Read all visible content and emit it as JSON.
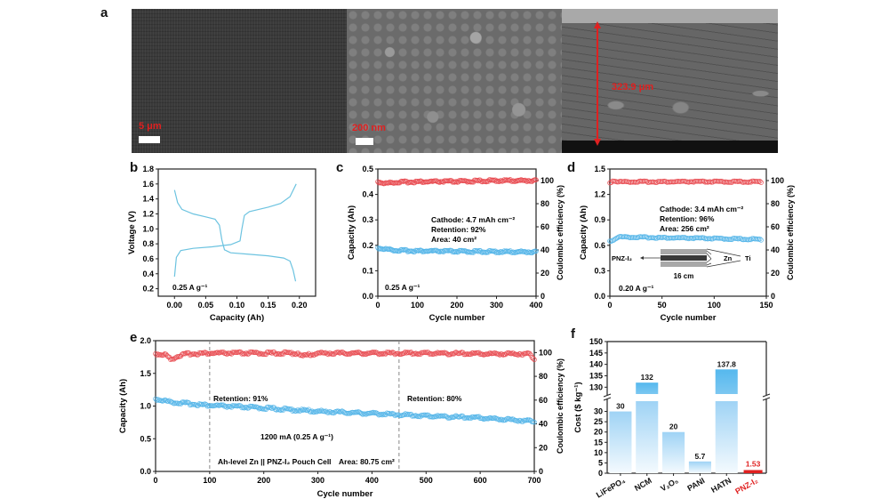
{
  "panels": {
    "a": {
      "label": "a",
      "images": [
        {
          "scale_label": "5 μm"
        },
        {
          "scale_label": "200 nm"
        },
        {
          "scale_label": "323.9 μm"
        }
      ]
    },
    "b": {
      "label": "b"
    },
    "c": {
      "label": "c"
    },
    "d": {
      "label": "d"
    },
    "e": {
      "label": "e"
    },
    "f": {
      "label": "f"
    }
  },
  "colors": {
    "red": "#e8474c",
    "blue": "#4fb3e8",
    "pnz": "#e02020"
  },
  "chart_data": [
    {
      "id": "b",
      "type": "line",
      "xlabel": "Capacity (Ah)",
      "ylabel": "Voltage (V)",
      "xlim": [
        -0.026,
        0.226
      ],
      "ylim": [
        0.1,
        1.8
      ],
      "xticks": [
        "0.00",
        "0.05",
        "0.10",
        "0.15",
        "0.20"
      ],
      "xtick_values": [
        0,
        0.05,
        0.1,
        0.15,
        0.2
      ],
      "yticks": [
        "0.2",
        "0.4",
        "0.6",
        "0.8",
        "1.0",
        "1.2",
        "1.4",
        "1.6",
        "1.8"
      ],
      "ytick_values": [
        0.2,
        0.4,
        0.6,
        0.8,
        1.0,
        1.2,
        1.4,
        1.6,
        1.8
      ],
      "annotation": "0.25 A g⁻¹",
      "series": [
        {
          "name": "discharge",
          "x": [
            0.0,
            0.005,
            0.012,
            0.03,
            0.05,
            0.065,
            0.072,
            0.076,
            0.08,
            0.09,
            0.12,
            0.15,
            0.175,
            0.185,
            0.19,
            0.194
          ],
          "y": [
            1.52,
            1.35,
            1.26,
            1.2,
            1.16,
            1.13,
            1.05,
            0.85,
            0.72,
            0.68,
            0.66,
            0.64,
            0.61,
            0.57,
            0.45,
            0.3
          ]
        },
        {
          "name": "charge",
          "x": [
            0.0,
            0.003,
            0.01,
            0.03,
            0.06,
            0.09,
            0.105,
            0.108,
            0.112,
            0.12,
            0.15,
            0.17,
            0.185,
            0.195
          ],
          "y": [
            0.36,
            0.62,
            0.71,
            0.74,
            0.76,
            0.79,
            0.84,
            1.0,
            1.18,
            1.23,
            1.29,
            1.34,
            1.43,
            1.6
          ]
        }
      ]
    },
    {
      "id": "c",
      "type": "scatter",
      "xlabel": "Cycle number",
      "ylabel": "Capacity (Ah)",
      "y2label": "Coulombic efficiency (%)",
      "xlim": [
        0,
        400
      ],
      "ylim": [
        0,
        0.5
      ],
      "y2lim": [
        0,
        110
      ],
      "xticks": [
        "0",
        "100",
        "200",
        "300",
        "400"
      ],
      "xtick_values": [
        0,
        100,
        200,
        300,
        400
      ],
      "yticks": [
        "0.0",
        "0.1",
        "0.2",
        "0.3",
        "0.4",
        "0.5"
      ],
      "ytick_values": [
        0,
        0.1,
        0.2,
        0.3,
        0.4,
        0.5
      ],
      "y2ticks": [
        "0",
        "20",
        "40",
        "60",
        "80",
        "100"
      ],
      "y2tick_values": [
        0,
        20,
        40,
        60,
        80,
        100
      ],
      "annotations": [
        "Cathode: 4.7 mAh cm⁻²",
        "Retention:  92%",
        "Area: 40 cm²",
        "0.25 A g⁻¹"
      ],
      "series": [
        {
          "name": "Coulombic efficiency",
          "axis": "y2",
          "x": [
            0,
            20,
            40,
            100,
            200,
            300,
            400
          ],
          "y": [
            99,
            97.5,
            98.5,
            99,
            99.2,
            100,
            100
          ]
        },
        {
          "name": "Capacity",
          "axis": "y",
          "x": [
            0,
            20,
            50,
            100,
            200,
            300,
            400
          ],
          "y": [
            0.19,
            0.185,
            0.18,
            0.178,
            0.176,
            0.175,
            0.174
          ]
        }
      ]
    },
    {
      "id": "d",
      "type": "scatter",
      "xlabel": "Cycle number",
      "ylabel": "Capacity (Ah)",
      "y2label": "Coulombic efficiency (%)",
      "xlim": [
        0,
        150
      ],
      "ylim": [
        0,
        1.5
      ],
      "y2lim": [
        0,
        110
      ],
      "xticks": [
        "0",
        "50",
        "100",
        "150"
      ],
      "xtick_values": [
        0,
        50,
        100,
        150
      ],
      "yticks": [
        "0.0",
        "0.3",
        "0.6",
        "0.9",
        "1.2",
        "1.5"
      ],
      "ytick_values": [
        0,
        0.3,
        0.6,
        0.9,
        1.2,
        1.5
      ],
      "y2ticks": [
        "0",
        "20",
        "40",
        "60",
        "80",
        "100"
      ],
      "y2tick_values": [
        0,
        20,
        40,
        60,
        80,
        100
      ],
      "annotations": [
        "Cathode: 3.4 mAh cm⁻²",
        "Retention: 96%",
        "Area: 256 cm²",
        "0.20 A g⁻¹"
      ],
      "inset": {
        "left_label": "PNZ-I₂",
        "mid_label": "Zn",
        "right_label": "Ti",
        "width_label": "16 cm"
      },
      "series": [
        {
          "name": "Coulombic efficiency",
          "axis": "y2",
          "x": [
            0,
            3,
            8,
            50,
            100,
            145
          ],
          "y": [
            98,
            100,
            99,
            99,
            99,
            99
          ]
        },
        {
          "name": "Capacity",
          "axis": "y",
          "x": [
            0,
            3,
            8,
            50,
            100,
            145
          ],
          "y": [
            0.65,
            0.66,
            0.7,
            0.69,
            0.68,
            0.67
          ]
        }
      ]
    },
    {
      "id": "e",
      "type": "scatter",
      "xlabel": "Cycle number",
      "ylabel": "Capacity (Ah)",
      "y2label": "Coulombic efficiency (%)",
      "xlim": [
        0,
        700
      ],
      "ylim": [
        0,
        2.0
      ],
      "y2lim": [
        0,
        110
      ],
      "xticks": [
        "0",
        "100",
        "200",
        "300",
        "400",
        "500",
        "600",
        "700"
      ],
      "xtick_values": [
        0,
        100,
        200,
        300,
        400,
        500,
        600,
        700
      ],
      "yticks": [
        "0.0",
        "0.5",
        "1.0",
        "1.5",
        "2.0"
      ],
      "ytick_values": [
        0,
        0.5,
        1.0,
        1.5,
        2.0
      ],
      "y2ticks": [
        "0",
        "20",
        "40",
        "60",
        "80",
        "100"
      ],
      "y2tick_values": [
        0,
        20,
        40,
        60,
        80,
        100
      ],
      "vlines": [
        100,
        450
      ],
      "annotations": [
        "Retention: 91%",
        "Retention: 80%",
        "1200 mA (0.25 A g⁻¹)",
        "Ah-level Zn || PNZ-I₂ Pouch Cell",
        "Area: 80.75 cm²"
      ],
      "series": [
        {
          "name": "Coulombic efficiency",
          "axis": "y2",
          "x": [
            0,
            20,
            28,
            40,
            60,
            100,
            265,
            270,
            300,
            500,
            600,
            690,
            700
          ],
          "y": [
            99,
            98,
            94,
            97,
            99,
            99.5,
            99.5,
            97,
            99.5,
            99.5,
            99,
            99,
            95
          ]
        },
        {
          "name": "Capacity",
          "axis": "y",
          "x": [
            0,
            30,
            100,
            200,
            300,
            450,
            500,
            600,
            700
          ],
          "y": [
            1.11,
            1.06,
            1.01,
            0.97,
            0.92,
            0.87,
            0.85,
            0.82,
            0.77
          ]
        }
      ]
    },
    {
      "id": "f",
      "type": "bar",
      "ylabel": "Cost ($ kg⁻¹)",
      "categories": [
        "LiFePO₄",
        "NCM",
        "V₂O₅",
        "PANI",
        "HATN",
        "PNZ-I₂"
      ],
      "values": [
        30,
        132,
        20,
        5.7,
        137.8,
        1.53
      ],
      "value_labels": [
        "30",
        "132",
        "20",
        "5.7",
        "137.8",
        "1.53"
      ],
      "axis_break": [
        35,
        127
      ],
      "ylim_lower": [
        0,
        35
      ],
      "ylim_upper": [
        127,
        150
      ],
      "yticks_lower": [
        "0",
        "5",
        "10",
        "15",
        "20",
        "25",
        "30"
      ],
      "ytick_values_lower": [
        0,
        5,
        10,
        15,
        20,
        25,
        30
      ],
      "yticks_upper": [
        "130",
        "135",
        "140",
        "145",
        "150"
      ],
      "ytick_values_upper": [
        130,
        135,
        140,
        145,
        150
      ],
      "highlight_category": "PNZ-I₂"
    }
  ]
}
